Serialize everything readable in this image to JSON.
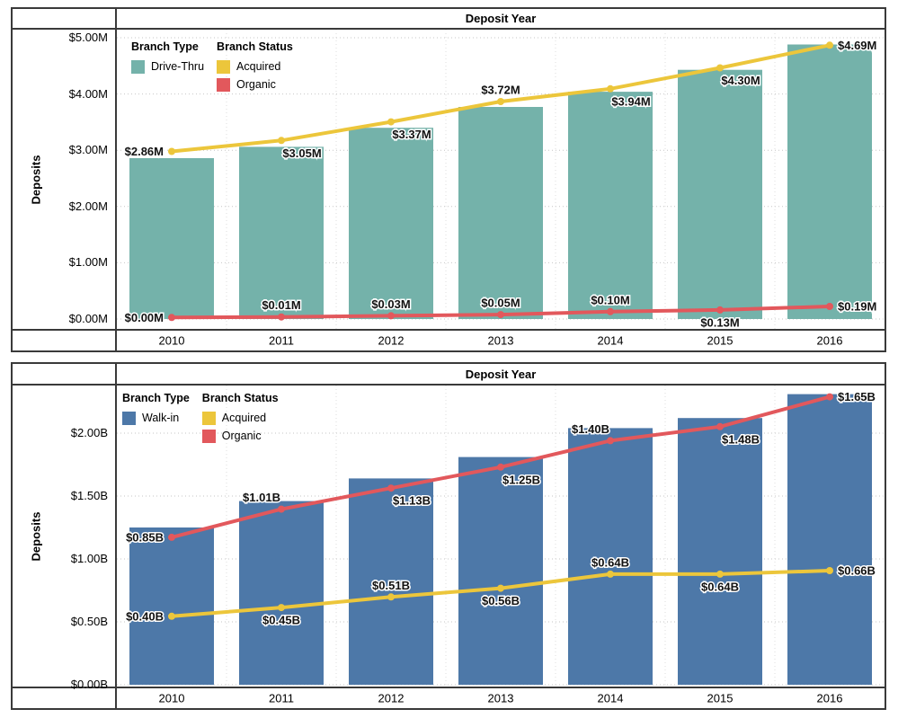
{
  "chart_data": {
    "charts": [
      {
        "type": "bar+line",
        "title": "Deposit Year",
        "y_axis_title": "Deposits",
        "unit": "M",
        "categories": [
          "2010",
          "2011",
          "2012",
          "2013",
          "2014",
          "2015",
          "2016"
        ],
        "y_axis": {
          "ticks": [
            {
              "value": 0,
              "label": "$0.00M"
            },
            {
              "value": 1,
              "label": "$1.00M"
            },
            {
              "value": 2,
              "label": "$2.00M"
            },
            {
              "value": 3,
              "label": "$3.00M"
            },
            {
              "value": 4,
              "label": "$4.00M"
            },
            {
              "value": 5,
              "label": "$5.00M"
            }
          ],
          "bars_ylim": [
            0,
            5.15
          ],
          "lines_ylim": [
            0,
            5.0
          ],
          "grid": true
        },
        "legend": {
          "type_header": "Branch Type",
          "type_items": [
            {
              "label": "Drive-Thru",
              "color": "#74b2aa"
            }
          ],
          "status_header": "Branch Status",
          "status_items": [
            {
              "label": "Acquired",
              "color": "#ecc63b"
            },
            {
              "label": "Organic",
              "color": "#e2585c"
            }
          ]
        },
        "bar_series": {
          "name": "Drive-Thru",
          "color": "#74b2aa",
          "note": "bar height = Acquired + Organic total"
        },
        "lines": [
          {
            "name": "Acquired",
            "color": "#ecc63b",
            "values": [
              2.86,
              3.05,
              3.37,
              3.72,
              3.94,
              4.3,
              4.69
            ],
            "labels": [
              "$2.86M",
              "$3.05M",
              "$3.37M",
              "$3.72M",
              "$3.94M",
              "$4.30M",
              "$4.69M"
            ],
            "placements": [
              "left",
              "below-right",
              "below-right",
              "above",
              "below-right",
              "below-right",
              "right"
            ]
          },
          {
            "name": "Organic",
            "color": "#e2585c",
            "values": [
              0,
              0.01,
              0.03,
              0.05,
              0.1,
              0.13,
              0.19
            ],
            "labels": [
              "$0.00M",
              "$0.01M",
              "$0.03M",
              "$0.05M",
              "$0.10M",
              "$0.13M",
              "$0.19M"
            ],
            "placements": [
              "left",
              "above",
              "above",
              "above",
              "above",
              "below",
              "right"
            ]
          }
        ]
      },
      {
        "type": "bar+line",
        "title": "Deposit Year",
        "y_axis_title": "Deposits",
        "unit": "B",
        "categories": [
          "2010",
          "2011",
          "2012",
          "2013",
          "2014",
          "2015",
          "2016"
        ],
        "y_axis": {
          "ticks": [
            {
              "value": 0,
              "label": "$0.00B"
            },
            {
              "value": 0.5,
              "label": "$0.50B"
            },
            {
              "value": 1,
              "label": "$1.00B"
            },
            {
              "value": 1.5,
              "label": "$1.50B"
            },
            {
              "value": 2,
              "label": "$2.00B"
            }
          ],
          "bars_ylim": [
            0,
            2.38
          ],
          "lines_ylim": [
            0,
            1.72
          ],
          "grid": true
        },
        "legend": {
          "type_header": "Branch Type",
          "type_items": [
            {
              "label": "Walk-in",
              "color": "#4d78a8"
            }
          ],
          "status_header": "Branch Status",
          "status_items": [
            {
              "label": "Acquired",
              "color": "#ecc63b"
            },
            {
              "label": "Organic",
              "color": "#e2585c"
            }
          ]
        },
        "bar_series": {
          "name": "Walk-in",
          "color": "#4d78a8",
          "note": "bar height = Acquired + Organic total"
        },
        "lines": [
          {
            "name": "Acquired",
            "color": "#ecc63b",
            "values": [
              0.4,
              0.45,
              0.51,
              0.56,
              0.64,
              0.64,
              0.66
            ],
            "labels": [
              "$0.40B",
              "$0.45B",
              "$0.51B",
              "$0.56B",
              "$0.64B",
              "$0.64B",
              "$0.66B"
            ],
            "placements": [
              "left",
              "below",
              "above",
              "below",
              "above",
              "below",
              "right"
            ]
          },
          {
            "name": "Organic",
            "color": "#e2585c",
            "values": [
              0.85,
              1.01,
              1.13,
              1.25,
              1.4,
              1.48,
              1.65
            ],
            "labels": [
              "$0.85B",
              "$1.01B",
              "$1.13B",
              "$1.25B",
              "$1.40B",
              "$1.48B",
              "$1.65B"
            ],
            "placements": [
              "left",
              "above-left",
              "below-right",
              "below-right",
              "above-left",
              "below-right",
              "right"
            ]
          }
        ]
      }
    ]
  }
}
